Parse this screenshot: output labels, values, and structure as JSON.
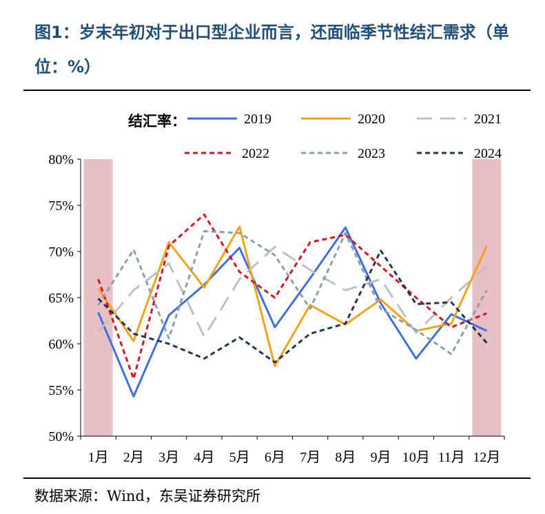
{
  "header": {
    "title": "图1：岁末年初对于出口型企业而言，还面临季节性结汇需求（单位：%）"
  },
  "footer": {
    "source": "数据来源：Wind，东吴证券研究所"
  },
  "chart_data": {
    "type": "line",
    "title": "图1：岁末年初对于出口型企业而言，还面临季节性结汇需求（单位：%）",
    "legend_title": "结汇率：",
    "xlabel": "",
    "ylabel": "",
    "ylim": [
      50,
      80
    ],
    "yticks": [
      50,
      55,
      60,
      65,
      70,
      75,
      80
    ],
    "ytick_labels": [
      "50%",
      "55%",
      "60%",
      "65%",
      "70%",
      "75%",
      "80%"
    ],
    "categories": [
      "1月",
      "2月",
      "3月",
      "4月",
      "5月",
      "6月",
      "7月",
      "8月",
      "9月",
      "10月",
      "11月",
      "12月"
    ],
    "highlight_months": [
      "1月",
      "12月"
    ],
    "highlight_color": "#e8bfc4",
    "series": [
      {
        "name": "2019",
        "color": "#3d6fe0",
        "dash": "solid",
        "values": [
          63.4,
          54.3,
          63.1,
          66.4,
          70.4,
          61.8,
          67.1,
          72.6,
          64.4,
          58.4,
          63.2,
          61.4
        ]
      },
      {
        "name": "2020",
        "color": "#f5a216",
        "dash": "solid",
        "values": [
          66.0,
          60.3,
          71.0,
          66.1,
          72.7,
          57.6,
          64.2,
          62.1,
          64.8,
          61.4,
          62.2,
          70.6
        ]
      },
      {
        "name": "2021",
        "color": "#bfbfbf",
        "dash": "long",
        "values": [
          61.3,
          65.8,
          68.7,
          60.8,
          67.0,
          70.5,
          68.0,
          65.8,
          67.0,
          61.2,
          65.0,
          68.4
        ]
      },
      {
        "name": "2022",
        "color": "#e0101a",
        "dash": "short",
        "values": [
          67.0,
          56.2,
          70.6,
          74.0,
          67.8,
          65.0,
          71.0,
          71.8,
          68.4,
          65.0,
          61.8,
          63.3
        ]
      },
      {
        "name": "2023",
        "color": "#8c9db0",
        "dash": "short",
        "values": [
          64.2,
          70.2,
          60.6,
          72.2,
          72.0,
          69.6,
          63.8,
          72.0,
          63.8,
          61.5,
          58.9,
          65.8
        ]
      },
      {
        "name": "2024",
        "color": "#1f3552",
        "dash": "short",
        "values": [
          64.9,
          61.1,
          60.0,
          58.4,
          60.7,
          58.0,
          61.1,
          62.2,
          70.1,
          64.3,
          64.5,
          60.1
        ]
      }
    ]
  }
}
